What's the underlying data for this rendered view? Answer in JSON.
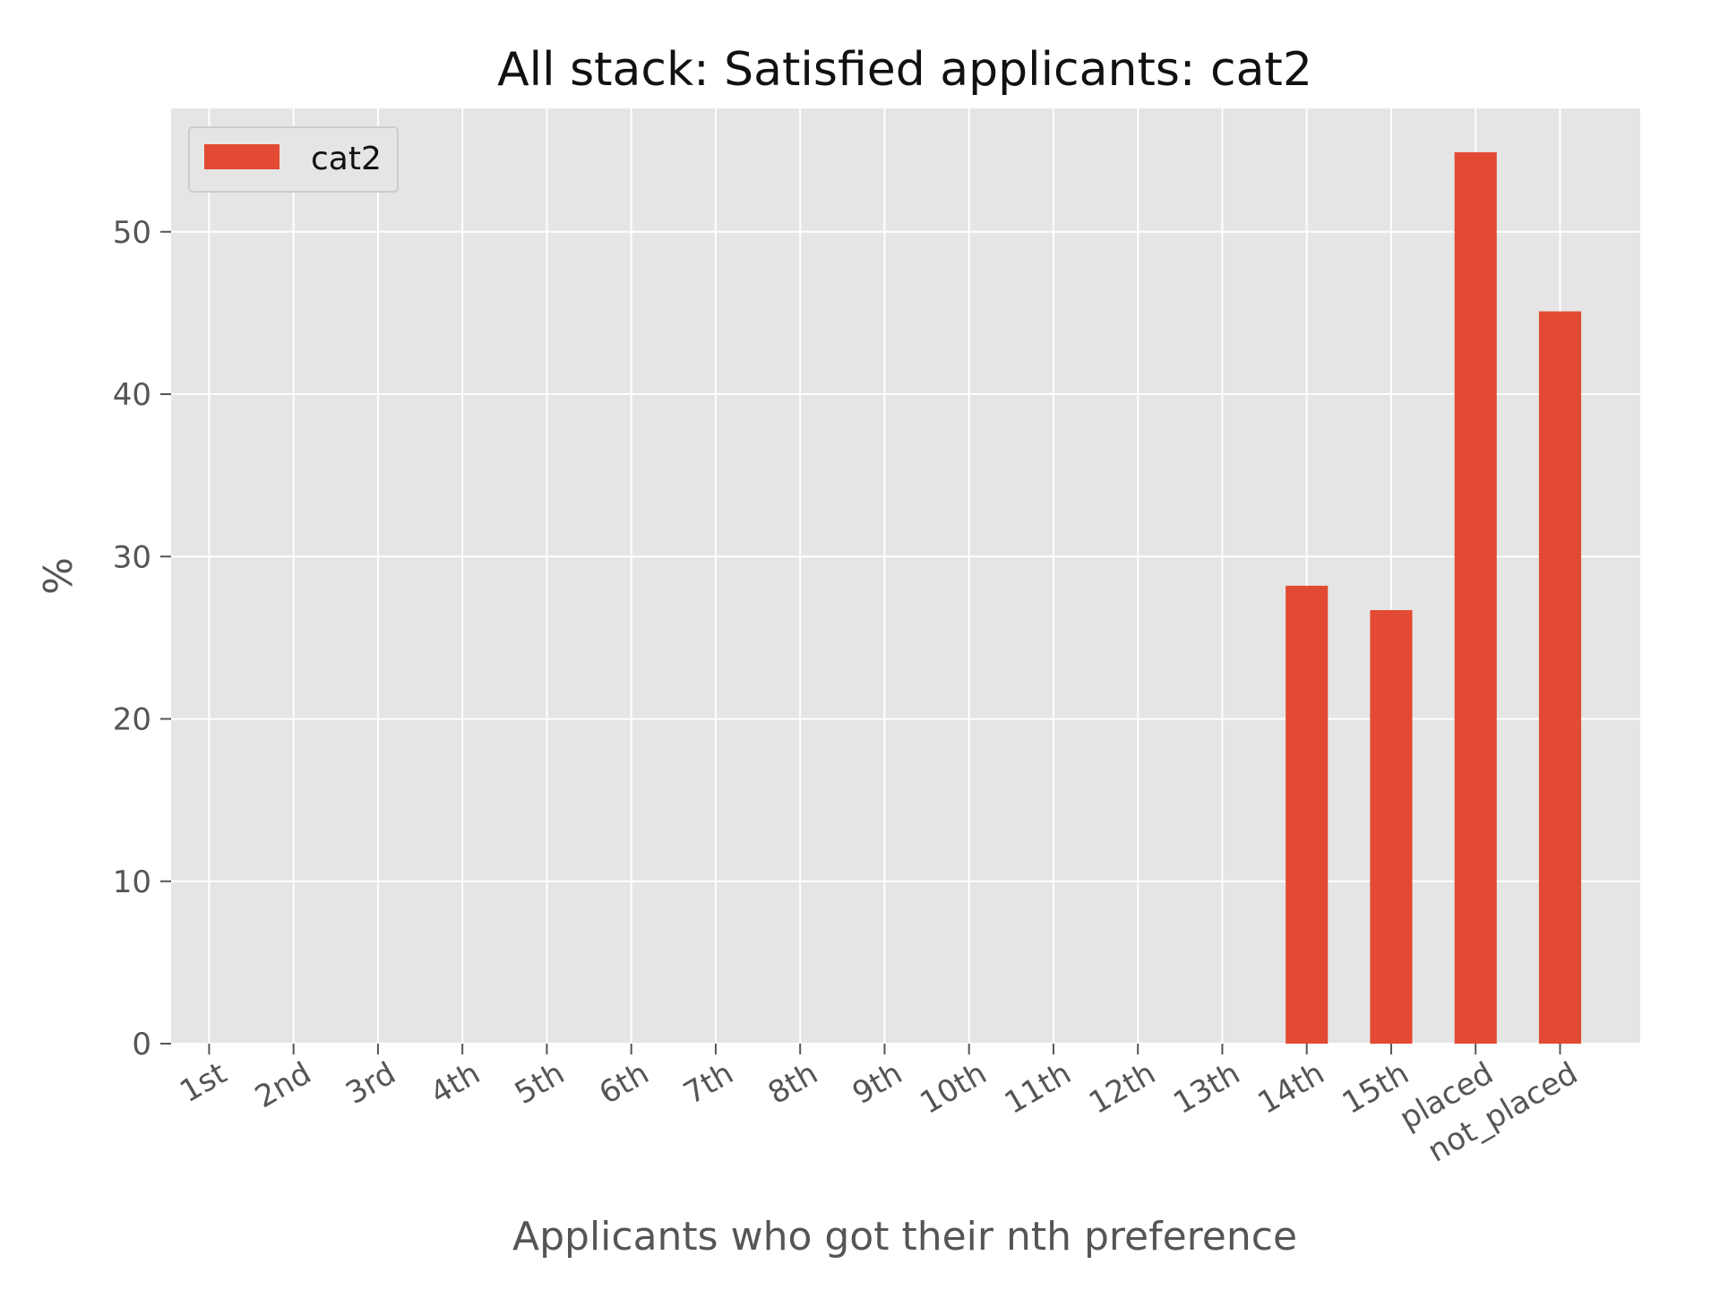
{
  "chart_data": {
    "type": "bar",
    "title": "All stack: Satisfied applicants: cat2",
    "xlabel": "Applicants who got their nth preference",
    "ylabel": "%",
    "categories": [
      "1st",
      "2nd",
      "3rd",
      "4th",
      "5th",
      "6th",
      "7th",
      "8th",
      "9th",
      "10th",
      "11th",
      "12th",
      "13th",
      "14th",
      "15th",
      "placed",
      "not_placed"
    ],
    "series": [
      {
        "name": "cat2",
        "color": "#E24A33",
        "values": [
          0,
          0,
          0,
          0,
          0,
          0,
          0,
          0,
          0,
          0,
          0,
          0,
          0,
          28.2,
          26.7,
          54.9,
          45.1
        ]
      }
    ],
    "ylim": [
      0,
      57.6
    ],
    "yticks": [
      0,
      10,
      20,
      30,
      40,
      50
    ],
    "grid": true,
    "legend": "top-left",
    "background": "#E5E5E5"
  }
}
